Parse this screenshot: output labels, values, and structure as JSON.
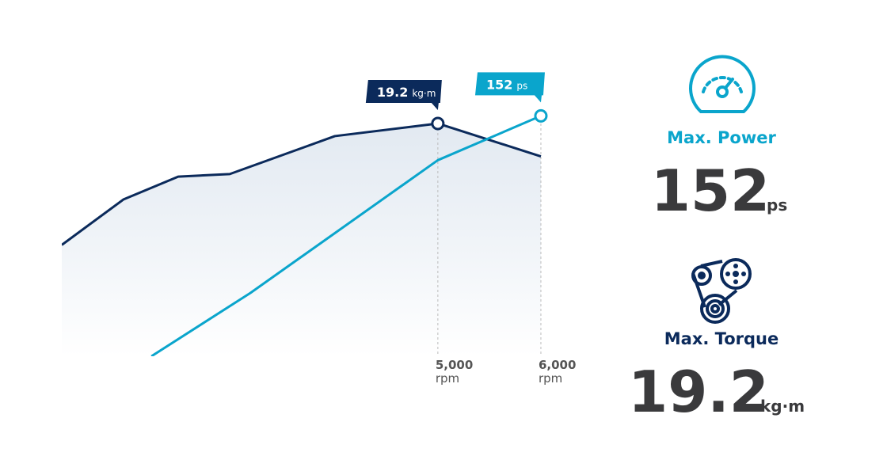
{
  "chart_data": {
    "type": "line",
    "xlim": [
      1350,
      6300
    ],
    "xticks": [
      {
        "value": 5000,
        "label": "5,000"
      },
      {
        "value": 6000,
        "label": "6,000"
      }
    ],
    "x_unit": "rpm",
    "ylim": [
      10,
      20
    ],
    "y2lim": [
      0,
      160
    ],
    "series": [
      {
        "name": "Torque",
        "unit": "kg·m",
        "color": "#0b2a5b",
        "x": [
          1350,
          1950,
          2480,
          2980,
          4000,
          5000,
          6000
        ],
        "values": [
          14.4,
          16.2,
          17.1,
          17.2,
          18.7,
          19.2,
          17.9
        ],
        "peak": 5
      },
      {
        "name": "Power",
        "unit": "ps",
        "color": "#0aa5cc",
        "axis": "y2",
        "x": [
          2220,
          3180,
          5000,
          6000
        ],
        "values": [
          0,
          40,
          124,
          152
        ],
        "peak": 3
      }
    ]
  },
  "stats": [
    {
      "label": "Max. Power",
      "value": "152",
      "unit": "ps"
    },
    {
      "label": "Max. Torque",
      "value": "19.2",
      "unit": "kg·m"
    }
  ]
}
